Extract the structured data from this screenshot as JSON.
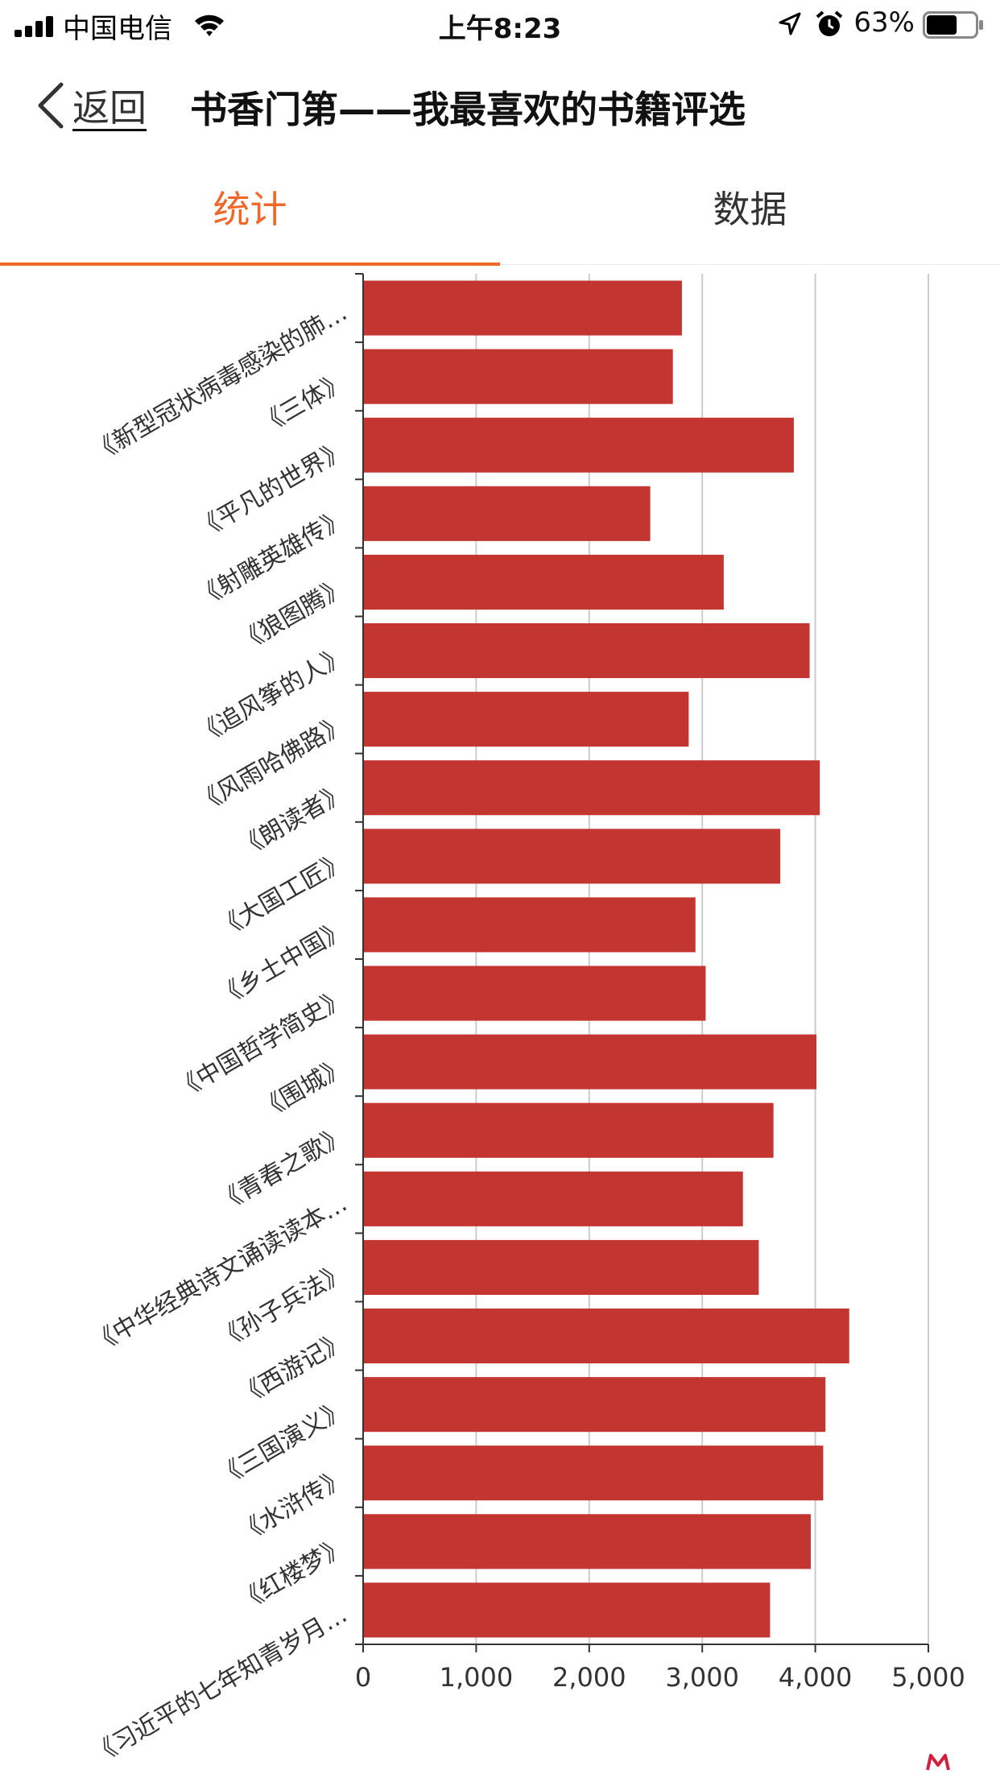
{
  "status": {
    "carrier": "中国电信",
    "time": "上午8:23",
    "battery_pct": "63%",
    "battery_level": 0.63
  },
  "nav": {
    "back_label": "返回",
    "title": "书香门第——我最喜欢的书籍评选"
  },
  "tabs": [
    {
      "label": "统计",
      "active": true
    },
    {
      "label": "数据",
      "active": false
    }
  ],
  "colors": {
    "accent": "#f0672a",
    "bar": "#c23531",
    "grid": "#cccccc"
  },
  "chart_data": {
    "type": "bar",
    "orientation": "horizontal",
    "categories": [
      "《新型冠状病毒感染的肺…",
      "《三体》",
      "《平凡的世界》",
      "《射雕英雄传》",
      "《狼图腾》",
      "《追风筝的人》",
      "《风雨哈佛路》",
      "《朗读者》",
      "《大国工匠》",
      "《乡土中国》",
      "《中国哲学简史》",
      "《围城》",
      "《青春之歌》",
      "《中华经典诗文诵读读本…",
      "《孙子兵法》",
      "《西游记》",
      "《三国演义》",
      "《水浒传》",
      "《红楼梦》",
      "《习近平的七年知青岁月…"
    ],
    "values": [
      2820,
      2740,
      3810,
      2540,
      3190,
      3950,
      2880,
      4040,
      3690,
      2940,
      3030,
      4010,
      3630,
      3360,
      3500,
      4300,
      4090,
      4070,
      3960,
      3600
    ],
    "x_ticks": [
      "0",
      "1,000",
      "2,000",
      "3,000",
      "4,000",
      "5,000"
    ],
    "xlim": [
      0,
      5000
    ],
    "grid": true,
    "legend": "none"
  }
}
